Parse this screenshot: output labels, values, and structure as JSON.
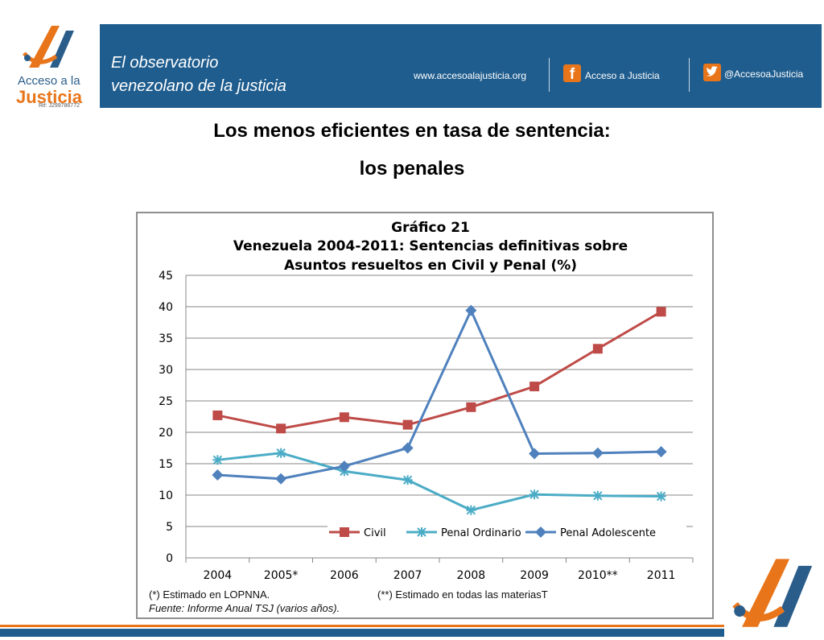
{
  "header": {
    "logo": {
      "line1": "Acceso a la",
      "line2": "Justicia",
      "rif": "Rif: J299786772",
      "colors": {
        "orange": "#e8751a",
        "blue": "#2b5d8a"
      }
    },
    "tagline_line1": "El observatorio",
    "tagline_line2": "venezolano de la justicia",
    "website": "www.accesoalajusticia.org",
    "facebook_label": "Acceso a Justicia",
    "twitter_label": "@AccesoaJusticia",
    "banner_color": "#1f5d8e"
  },
  "headline": {
    "line1": "Los menos eficientes en tasa de sentencia:",
    "line2": "los penales"
  },
  "chart_data": {
    "type": "line",
    "title_line1": "Gráfico 21",
    "title_line2": "Venezuela 2004-2011: Sentencias definitivas sobre",
    "title_line3": "Asuntos resueltos en Civil y Penal (%)",
    "categories": [
      "2004",
      "2005*",
      "2006",
      "2007",
      "2008",
      "2009",
      "2010**",
      "2011"
    ],
    "ylim": [
      0,
      45
    ],
    "yticks": [
      0,
      5,
      10,
      15,
      20,
      25,
      30,
      35,
      40,
      45
    ],
    "grid": true,
    "legend_position": "bottom",
    "series": [
      {
        "name": "Civil",
        "color": "#be4b48",
        "marker": "square",
        "values": [
          22.7,
          20.6,
          22.4,
          21.2,
          24.0,
          27.3,
          33.3,
          39.2
        ]
      },
      {
        "name": "Penal Ordinario",
        "color": "#4bacc6",
        "marker": "star",
        "values": [
          15.6,
          16.7,
          13.8,
          12.4,
          7.6,
          10.1,
          9.9,
          9.8
        ]
      },
      {
        "name": "Penal Adolescente",
        "color": "#4f81bd",
        "marker": "diamond",
        "values": [
          13.2,
          12.6,
          14.6,
          17.5,
          39.4,
          16.6,
          16.7,
          16.9
        ]
      }
    ],
    "note1": "(*) Estimado en LOPNNA.",
    "note2": "(**) Estimado en todas las materiasT",
    "source": "Fuente: Informe Anual TSJ (varios años)."
  }
}
